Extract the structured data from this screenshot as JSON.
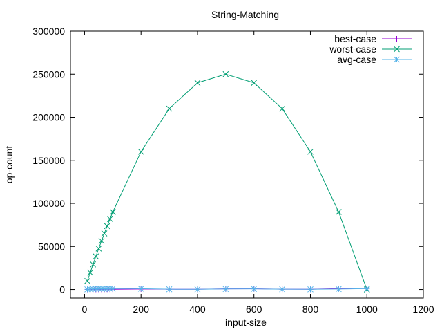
{
  "chart_data": {
    "type": "line",
    "title": "String-Matching",
    "xlabel": "input-size",
    "ylabel": "op-count",
    "xlim": [
      -50,
      1200
    ],
    "ylim": [
      -10000,
      300000
    ],
    "xticks": [
      0,
      200,
      400,
      600,
      800,
      1000,
      1200
    ],
    "yticks": [
      0,
      50000,
      100000,
      150000,
      200000,
      250000,
      300000
    ],
    "grid": false,
    "legend_position": "top-right",
    "series": [
      {
        "name": "best-case",
        "color": "#9400d3",
        "marker": "plus",
        "x": [
          10,
          20,
          30,
          40,
          50,
          60,
          70,
          80,
          90,
          100,
          200,
          300,
          400,
          500,
          600,
          700,
          800,
          900,
          1000
        ],
        "y": [
          30,
          60,
          80,
          120,
          150,
          170,
          200,
          230,
          260,
          290,
          500,
          300,
          200,
          700,
          800,
          300,
          200,
          1000,
          1100
        ]
      },
      {
        "name": "worst-case",
        "color": "#009e73",
        "marker": "cross",
        "x": [
          10,
          20,
          30,
          40,
          50,
          60,
          70,
          80,
          90,
          100,
          200,
          300,
          400,
          500,
          600,
          700,
          800,
          900,
          1000
        ],
        "y": [
          9900,
          19600,
          29100,
          38400,
          47500,
          56400,
          65100,
          73600,
          81900,
          90000,
          160000,
          210000,
          240000,
          250000,
          240000,
          210000,
          160000,
          90000,
          0
        ]
      },
      {
        "name": "avg-case",
        "color": "#56b4e9",
        "marker": "star",
        "x": [
          10,
          20,
          30,
          40,
          50,
          60,
          70,
          80,
          90,
          100,
          200,
          300,
          400,
          500,
          600,
          700,
          800,
          900,
          1000
        ],
        "y": [
          200,
          400,
          600,
          800,
          1000,
          800,
          700,
          900,
          1000,
          1100,
          900,
          300,
          200,
          600,
          700,
          300,
          200,
          500,
          1000
        ]
      }
    ]
  }
}
